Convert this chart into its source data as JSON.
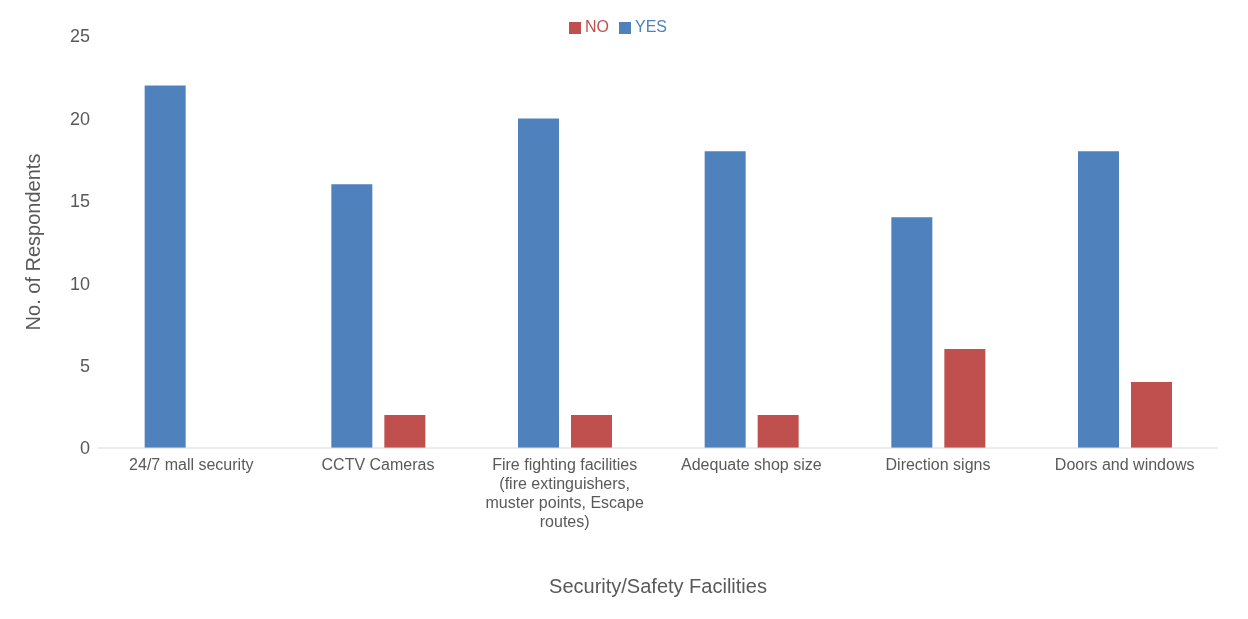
{
  "chart_data": {
    "type": "bar",
    "xlabel": "Security/Safety Facilities",
    "ylabel": "No. of Respondents",
    "categories": [
      "24/7 mall security",
      "CCTV Cameras",
      "Fire fighting facilities (fire extinguishers, muster points, Escape routes)",
      "Adequate shop size",
      "Direction signs",
      "Doors and windows"
    ],
    "series": [
      {
        "name": "YES",
        "color": "#4f81bd",
        "values": [
          22,
          16,
          20,
          18,
          14,
          18
        ]
      },
      {
        "name": "NO",
        "color": "#c0504d",
        "values": [
          0,
          2,
          2,
          2,
          6,
          4
        ]
      }
    ],
    "ylim": [
      0,
      25
    ],
    "yticks": [
      0,
      5,
      10,
      15,
      20,
      25
    ],
    "grid": false,
    "legend": "top"
  }
}
